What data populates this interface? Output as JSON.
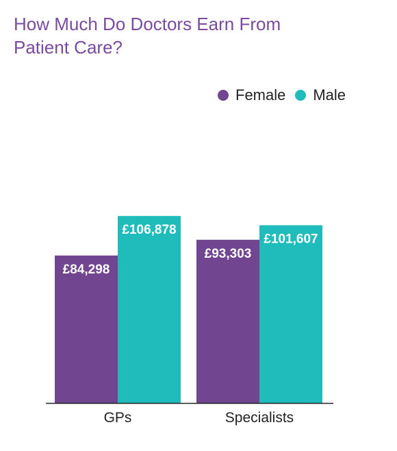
{
  "chart_data": {
    "type": "bar",
    "title": "How Much Do Doctors Earn From Patient Care?",
    "categories": [
      "GPs",
      "Specialists"
    ],
    "series": [
      {
        "name": "Female",
        "color": "#71458f",
        "values": [
          84298,
          93303
        ],
        "labels": [
          "£84,298",
          "£93,303"
        ]
      },
      {
        "name": "Male",
        "color": "#20bcbc",
        "values": [
          106878,
          101607
        ],
        "labels": [
          "£106,878",
          "£101,607"
        ]
      }
    ],
    "ylim": [
      0,
      125000
    ],
    "grid": false,
    "legend": "top-right"
  }
}
